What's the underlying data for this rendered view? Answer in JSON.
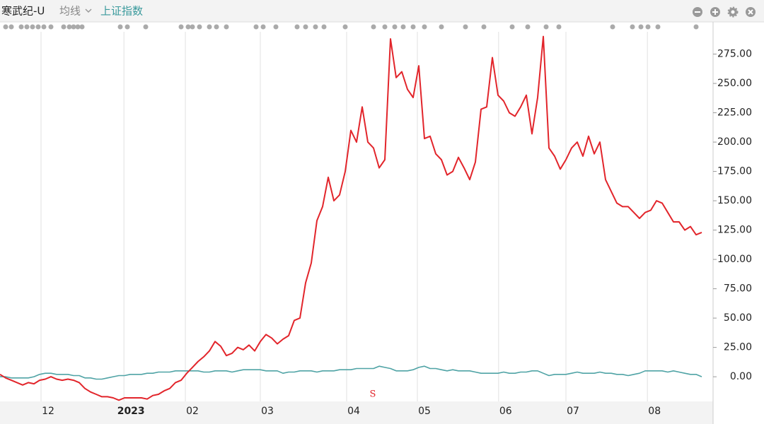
{
  "chart_data": {
    "type": "line",
    "ma_label": "均线",
    "annotation": "S",
    "x": [
      0,
      1,
      2,
      3,
      4,
      5,
      6,
      7,
      8,
      9,
      10,
      11,
      12,
      13,
      14,
      15,
      16,
      17,
      18,
      19,
      20,
      21,
      22,
      23,
      24,
      25,
      26,
      27,
      28,
      29,
      30,
      31,
      32,
      33,
      34,
      35,
      36,
      37,
      38,
      39,
      40,
      41,
      42,
      43,
      44,
      45,
      46,
      47,
      48,
      49,
      50,
      51,
      52,
      53,
      54,
      55,
      56,
      57,
      58,
      59,
      60,
      61,
      62,
      63,
      64,
      65,
      66,
      67,
      68,
      69,
      70,
      71,
      72,
      73,
      74,
      75,
      76,
      77,
      78,
      79,
      80,
      81,
      82,
      83,
      84,
      85,
      86,
      87,
      88,
      89,
      90,
      91,
      92,
      93,
      94,
      95,
      96,
      97,
      98,
      99,
      100,
      101,
      102,
      103,
      104,
      105,
      106,
      107,
      108,
      109,
      110,
      111,
      112,
      113,
      114,
      115,
      116,
      117,
      118,
      119,
      120,
      121,
      122,
      123,
      124
    ],
    "series": [
      {
        "name": "寒武纪-U",
        "color": "#e2252b",
        "values": [
          2,
          -1,
          -3,
          -5,
          -7,
          -5,
          -6,
          -3,
          -2,
          0,
          -2,
          -3,
          -2,
          -3,
          -5,
          -10,
          -13,
          -15,
          -17,
          -17,
          -18,
          -20,
          -18,
          -18,
          -18,
          -18,
          -19,
          -16,
          -15,
          -12,
          -10,
          -5,
          -3,
          3,
          8,
          13,
          17,
          22,
          30,
          26,
          18,
          20,
          25,
          23,
          27,
          22,
          30,
          36,
          33,
          28,
          32,
          35,
          48,
          50,
          80,
          97,
          133,
          145,
          170,
          150,
          155,
          175,
          210,
          200,
          230,
          200,
          195,
          178,
          185,
          288,
          255,
          260,
          245,
          238,
          265,
          203,
          205,
          190,
          185,
          172,
          175,
          187,
          178,
          168,
          183,
          228,
          230,
          272,
          240,
          235,
          225,
          222,
          230,
          240,
          207,
          238,
          290,
          195,
          188,
          177,
          185,
          195,
          200,
          188,
          205,
          190,
          200,
          168,
          158,
          148,
          145,
          145,
          140,
          135,
          140,
          142,
          150,
          148,
          140,
          132,
          132,
          125,
          128,
          121,
          123
        ]
      },
      {
        "name": "上证指数",
        "color": "#4fa3a5",
        "values": [
          0,
          0,
          -1,
          -1,
          -1,
          -1,
          0,
          2,
          3,
          3,
          2,
          2,
          2,
          1,
          1,
          -1,
          -1,
          -2,
          -2,
          -1,
          0,
          1,
          1,
          2,
          2,
          2,
          3,
          3,
          4,
          4,
          4,
          5,
          5,
          5,
          5,
          5,
          4,
          4,
          5,
          5,
          5,
          4,
          5,
          6,
          6,
          6,
          6,
          5,
          5,
          5,
          3,
          4,
          4,
          5,
          5,
          5,
          4,
          5,
          5,
          5,
          6,
          6,
          6,
          7,
          7,
          7,
          7,
          9,
          8,
          7,
          5,
          5,
          5,
          6,
          8,
          9,
          7,
          7,
          6,
          5,
          6,
          5,
          5,
          5,
          4,
          3,
          3,
          3,
          3,
          4,
          3,
          3,
          4,
          4,
          5,
          5,
          3,
          1,
          2,
          2,
          2,
          3,
          4,
          3,
          3,
          3,
          4,
          3,
          3,
          2,
          2,
          1,
          2,
          3,
          5,
          5,
          5,
          5,
          4,
          5,
          4,
          3,
          2,
          2,
          0
        ]
      }
    ],
    "xlim": [
      0,
      126
    ],
    "xticks": [
      {
        "value": 7.25,
        "label": "12"
      },
      {
        "value": 21.9,
        "label": "2023"
      },
      {
        "value": 32.75,
        "label": "02"
      },
      {
        "value": 46,
        "label": "03"
      },
      {
        "value": 61.25,
        "label": "04"
      },
      {
        "value": 73.75,
        "label": "05"
      },
      {
        "value": 88.1,
        "label": "06"
      },
      {
        "value": 100,
        "label": "07"
      },
      {
        "value": 114.4,
        "label": "08"
      }
    ],
    "ylim": [
      -21,
      294
    ],
    "yticks": [
      {
        "value": 0,
        "label": "0.00"
      },
      {
        "value": 25,
        "label": "25.00"
      },
      {
        "value": 50,
        "label": "50.00"
      },
      {
        "value": 75,
        "label": "75.00"
      },
      {
        "value": 100,
        "label": "100.00"
      },
      {
        "value": 125,
        "label": "125.00"
      },
      {
        "value": 150,
        "label": "150.00"
      },
      {
        "value": 175,
        "label": "175.00"
      },
      {
        "value": 200,
        "label": "200.00"
      },
      {
        "value": 225,
        "label": "225.00"
      },
      {
        "value": 250,
        "label": "250.00"
      },
      {
        "value": 275,
        "label": "275.00"
      }
    ],
    "grid": true
  }
}
